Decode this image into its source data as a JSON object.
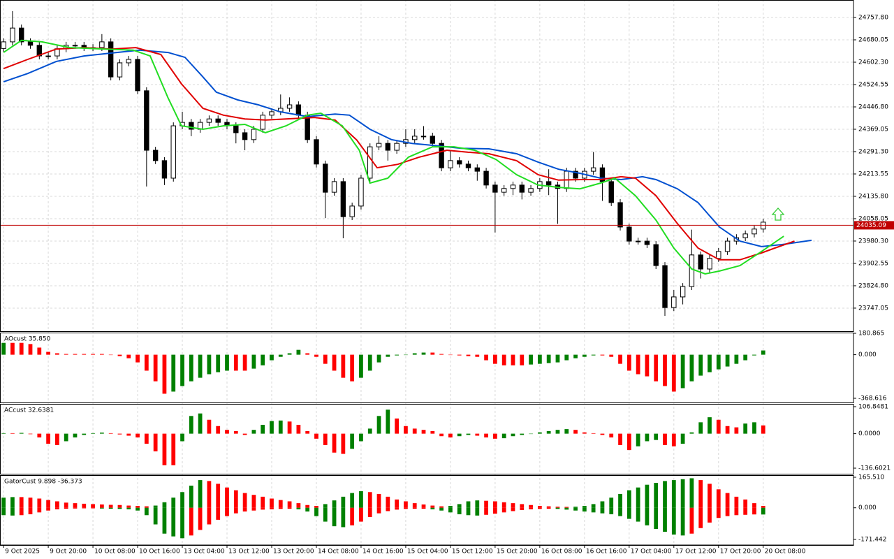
{
  "chart_data": [
    {
      "type": "candlestick",
      "categories": [
        "9 Oct 2025",
        null,
        null,
        null,
        null,
        "9 Oct 20:00",
        null,
        null,
        null,
        null,
        "10 Oct 08:00",
        null,
        null,
        null,
        null,
        "10 Oct 16:00",
        null,
        null,
        null,
        null,
        "13 Oct 04:00",
        null,
        null,
        null,
        null,
        "13 Oct 12:00",
        null,
        null,
        null,
        null,
        "13 Oct 20:00",
        null,
        null,
        null,
        null,
        "14 Oct 08:00",
        null,
        null,
        null,
        null,
        "14 Oct 16:00",
        null,
        null,
        null,
        null,
        "15 Oct 04:00",
        null,
        null,
        null,
        null,
        "15 Oct 12:00",
        null,
        null,
        null,
        null,
        "15 Oct 20:00",
        null,
        null,
        null,
        null,
        "16 Oct 08:00",
        null,
        null,
        null,
        null,
        "16 Oct 16:00",
        null,
        null,
        null,
        null,
        "17 Oct 04:00",
        null,
        null,
        null,
        null,
        "17 Oct 12:00",
        null,
        null,
        null,
        null,
        "17 Oct 20:00",
        null,
        null,
        null,
        null,
        "20 Oct 08:00"
      ],
      "open": [
        24650,
        24673,
        24721,
        24673,
        24661,
        24624,
        24624,
        24649,
        24661,
        24661,
        24653,
        24653,
        24673,
        24551,
        24600,
        24612,
        24503,
        24296,
        24260,
        24199,
        24381,
        24393,
        24369,
        24393,
        24405,
        24393,
        24381,
        24357,
        24333,
        24369,
        24418,
        24430,
        24442,
        24454,
        24418,
        24333,
        24248,
        24150,
        24187,
        24065,
        24102,
        24199,
        24308,
        24320,
        24296,
        24320,
        24333,
        24345,
        24345,
        24320,
        24235,
        24260,
        24248,
        24235,
        24223,
        24175,
        24150,
        24163,
        24175,
        24150,
        24163,
        24187,
        24175,
        24163,
        24223,
        24199,
        24223,
        24235,
        24187,
        24114,
        24029,
        23980,
        23980,
        23968,
        23895,
        23749,
        23786,
        23822,
        23932,
        23883,
        23920,
        23944,
        23980,
        23992,
        24005,
        24022
      ],
      "high": [
        24685,
        24780,
        24733,
        24685,
        24673,
        24636,
        24661,
        24673,
        24673,
        24673,
        24665,
        24700,
        24685,
        24612,
        24624,
        24624,
        24515,
        24308,
        24272,
        24393,
        24430,
        24405,
        24405,
        24417,
        24417,
        24405,
        24393,
        24369,
        24381,
        24430,
        24442,
        24490,
        24480,
        24466,
        24430,
        24345,
        24260,
        24199,
        24199,
        24114,
        24211,
        24320,
        24345,
        24332,
        24332,
        24369,
        24369,
        24380,
        24357,
        24332,
        24296,
        24272,
        24260,
        24247,
        24235,
        24187,
        24175,
        24187,
        24187,
        24175,
        24199,
        24230,
        24187,
        24235,
        24235,
        24235,
        24290,
        24247,
        24199,
        24126,
        24041,
        23992,
        23992,
        23980,
        23907,
        23810,
        23834,
        24020,
        23944,
        23932,
        23956,
        23992,
        24004,
        24017,
        24034,
        24058
      ],
      "low": [
        24638,
        24661,
        24661,
        24649,
        24612,
        24612,
        24612,
        24637,
        24649,
        24641,
        24641,
        24641,
        24539,
        24539,
        24588,
        24491,
        24170,
        24248,
        24175,
        24187,
        24369,
        24345,
        24357,
        24381,
        24381,
        24369,
        24320,
        24296,
        24321,
        24357,
        24406,
        24418,
        24430,
        24406,
        24321,
        24236,
        24060,
        24138,
        23990,
        24053,
        24090,
        24187,
        24296,
        24260,
        24284,
        24308,
        24321,
        24333,
        24308,
        24223,
        24223,
        24236,
        24223,
        24190,
        24163,
        24010,
        24138,
        24140,
        24125,
        24138,
        24151,
        24140,
        24040,
        24151,
        24187,
        24187,
        24211,
        24120,
        24102,
        24017,
        23968,
        23968,
        23956,
        23883,
        23720,
        23737,
        23760,
        23810,
        23850,
        23871,
        23908,
        23932,
        23968,
        23980,
        23993,
        24010
      ],
      "close": [
        24673,
        24721,
        24673,
        24661,
        24624,
        24624,
        24649,
        24661,
        24661,
        24653,
        24653,
        24673,
        24551,
        24600,
        24612,
        24503,
        24296,
        24260,
        24199,
        24381,
        24393,
        24369,
        24393,
        24405,
        24393,
        24381,
        24357,
        24333,
        24369,
        24418,
        24430,
        24442,
        24454,
        24418,
        24333,
        24248,
        24150,
        24187,
        24065,
        24102,
        24199,
        24308,
        24320,
        24296,
        24320,
        24333,
        24345,
        24345,
        24320,
        24235,
        24260,
        24248,
        24235,
        24223,
        24175,
        24150,
        24163,
        24175,
        24150,
        24163,
        24187,
        24175,
        24163,
        24223,
        24199,
        24223,
        24235,
        24187,
        24114,
        24029,
        23980,
        23980,
        23968,
        23895,
        23749,
        23786,
        23822,
        23932,
        23883,
        23920,
        23944,
        23980,
        23992,
        24005,
        24022,
        24046
      ],
      "up_color": "#ffffff",
      "down_color": "#000000",
      "outline_color": "#000000",
      "series": [
        {
          "color": "#0050d0",
          "x": [
            0,
            2.7,
            5.9,
            9.0,
            12.1,
            15.2,
            18.4,
            20.3,
            22.3,
            23.8,
            26.2,
            28.5,
            30.9,
            34.0,
            37.1,
            38.7,
            41.0,
            43.4,
            45.7,
            48.0,
            51.2,
            54.3,
            57.4,
            59.8,
            62.1,
            64.5,
            66.8,
            69.1,
            71.5,
            73.0,
            75.4,
            77.7,
            80.1,
            82.4,
            84.8,
            87.1,
            90.4
          ],
          "values": [
            24534,
            24563,
            24605,
            24624,
            24634,
            24644,
            24636,
            24619,
            24551,
            24498,
            24471,
            24454,
            24430,
            24413,
            24422,
            24418,
            24369,
            24333,
            24320,
            24313,
            24303,
            24301,
            24284,
            24255,
            24230,
            24216,
            24199,
            24194,
            24204,
            24194,
            24162,
            24114,
            24029,
            23980,
            23961,
            23968,
            23983
          ]
        },
        {
          "color": "#e00000",
          "x": [
            0,
            2.7,
            5.9,
            9.0,
            12.1,
            14.8,
            17.6,
            19.9,
            22.3,
            24.6,
            27.0,
            29.3,
            31.6,
            34.8,
            37.1,
            39.5,
            41.8,
            44.1,
            46.5,
            49.6,
            52.0,
            54.3,
            57.4,
            59.8,
            62.1,
            64.5,
            66.8,
            69.1,
            70.7,
            73.0,
            75.4,
            77.7,
            80.1,
            82.4,
            84.8,
            86.3,
            88.5
          ],
          "values": [
            24580,
            24612,
            24648,
            24653,
            24648,
            24653,
            24629,
            24527,
            24442,
            24418,
            24405,
            24401,
            24405,
            24410,
            24401,
            24332,
            24235,
            24247,
            24272,
            24296,
            24289,
            24284,
            24260,
            24211,
            24192,
            24194,
            24194,
            24204,
            24199,
            24138,
            24041,
            23956,
            23915,
            23915,
            23939,
            23956,
            23980
          ]
        },
        {
          "color": "#22dd22",
          "x": [
            0,
            2.0,
            4.3,
            7.4,
            11.3,
            14.5,
            16.4,
            18.4,
            19.9,
            22.3,
            24.6,
            27.0,
            29.3,
            31.6,
            34.0,
            35.5,
            37.9,
            39.8,
            41.0,
            43.0,
            45.3,
            48.0,
            50.4,
            52.7,
            55.1,
            57.4,
            59.8,
            62.1,
            64.5,
            66.8,
            68.4,
            70.7,
            73.0,
            75.0,
            77.0,
            78.5,
            80.1,
            82.4,
            84.8,
            87.3
          ],
          "values": [
            24636,
            24678,
            24673,
            24653,
            24648,
            24644,
            24624,
            24478,
            24381,
            24369,
            24381,
            24386,
            24357,
            24381,
            24418,
            24425,
            24381,
            24296,
            24182,
            24199,
            24272,
            24308,
            24308,
            24296,
            24264,
            24211,
            24175,
            24167,
            24162,
            24182,
            24199,
            24138,
            24053,
            23956,
            23883,
            23866,
            23876,
            23895,
            23944,
            23997
          ]
        }
      ],
      "current_price": 24035.09,
      "current_price_color": "#c00000",
      "xlim": [
        -0.4,
        95.1
      ],
      "ylim": [
        23671.6,
        24806.4
      ],
      "yticks": [
        {
          "value": 24757.8,
          "label": "24757.80"
        },
        24680.05,
        {
          "value": 24602.3,
          "label": "24602.30"
        },
        24524.55,
        {
          "value": 24446.8,
          "label": "24446.80"
        },
        24369.05,
        {
          "value": 24291.3,
          "label": "24291.30"
        },
        24213.55,
        {
          "value": 24135.8,
          "label": "24135.80"
        },
        24058.05,
        {
          "value": 23980.3,
          "label": "23980.30"
        },
        23902.55,
        {
          "value": 23824.8,
          "label": "23824.80"
        },
        23747.05
      ],
      "grid": true
    },
    {
      "type": "histogram",
      "title": "AOcust 35.850",
      "series": [
        {
          "values": [
            100,
            100,
            100,
            90,
            60,
            24,
            12,
            6,
            6,
            6,
            6,
            6,
            -2,
            -12,
            -30,
            -65,
            -135,
            -225,
            -330,
            -312,
            -265,
            -225,
            -195,
            -165,
            -148,
            -135,
            -135,
            -135,
            -118,
            -90,
            -47,
            -18,
            12,
            41,
            12,
            -18,
            -77,
            -135,
            -195,
            -225,
            -195,
            -135,
            -65,
            -18,
            -6,
            -2,
            12,
            18,
            18,
            6,
            -2,
            -6,
            -12,
            -18,
            -47,
            -77,
            -90,
            -90,
            -90,
            -83,
            -77,
            -71,
            -65,
            -47,
            -30,
            -18,
            -6,
            -6,
            -18,
            -77,
            -135,
            -165,
            -183,
            -225,
            -265,
            -312,
            -283,
            -225,
            -177,
            -148,
            -124,
            -100,
            -77,
            -47,
            -6,
            35.85
          ]
        }
      ],
      "up_color": "#008000",
      "down_color": "#ff0000",
      "ylim": [
        -368.616,
        180.865
      ],
      "yticks": [
        180.865,
        {
          "value": 0,
          "label": "0.000"
        },
        -368.616
      ]
    },
    {
      "type": "histogram",
      "title": "ACcust 32.6381",
      "series": [
        {
          "values": [
            2,
            2,
            3,
            -2,
            -15,
            -40,
            -45,
            -30,
            -15,
            -5,
            2,
            4,
            2,
            -3,
            -8,
            -15,
            -40,
            -70,
            -125,
            -125,
            -30,
            70,
            80,
            55,
            30,
            15,
            10,
            -5,
            15,
            35,
            50,
            52,
            48,
            35,
            10,
            -20,
            -45,
            -75,
            -80,
            -60,
            -30,
            20,
            70,
            95,
            60,
            30,
            20,
            15,
            10,
            -10,
            -15,
            -10,
            -5,
            -8,
            -15,
            -20,
            -18,
            -10,
            -5,
            0,
            5,
            10,
            15,
            18,
            15,
            5,
            2,
            -5,
            -15,
            -45,
            -65,
            -50,
            -30,
            -25,
            -45,
            -50,
            -40,
            5,
            45,
            65,
            55,
            30,
            25,
            40,
            45,
            32.6381
          ]
        }
      ],
      "up_color": "#008000",
      "down_color": "#ff0000",
      "ylim": [
        -136.6021,
        106.8481
      ],
      "yticks": [
        106.8481,
        {
          "value": 0,
          "label": "0.0000"
        },
        -136.6021
      ]
    },
    {
      "type": "gator",
      "title": "GatorCust 9.898 -36.373",
      "series": [
        {
          "values": [
            55,
            58,
            58,
            55,
            50,
            42,
            35,
            28,
            25,
            22,
            20,
            18,
            16,
            15,
            12,
            10,
            8,
            12,
            30,
            55,
            85,
            120,
            150,
            145,
            130,
            110,
            95,
            80,
            70,
            60,
            50,
            42,
            35,
            25,
            15,
            10,
            20,
            40,
            60,
            80,
            90,
            85,
            75,
            60,
            45,
            35,
            25,
            18,
            12,
            8,
            10,
            20,
            35,
            40,
            38,
            35,
            30,
            25,
            20,
            15,
            10,
            8,
            6,
            5,
            6,
            10,
            20,
            35,
            55,
            75,
            95,
            110,
            125,
            135,
            145,
            150,
            155,
            160,
            150,
            130,
            100,
            80,
            60,
            45,
            25,
            9.898
          ]
        },
        {
          "values": [
            -40,
            -42,
            -40,
            -35,
            -25,
            -15,
            -8,
            -5,
            -4,
            -3,
            -3,
            -4,
            -5,
            -6,
            -8,
            -15,
            -40,
            -90,
            -140,
            -155,
            -165,
            -150,
            -120,
            -90,
            -65,
            -45,
            -30,
            -20,
            -15,
            -10,
            -8,
            -6,
            -5,
            -8,
            -20,
            -45,
            -75,
            -100,
            -105,
            -95,
            -75,
            -50,
            -30,
            -18,
            -10,
            -6,
            -5,
            -5,
            -8,
            -15,
            -25,
            -35,
            -40,
            -42,
            -38,
            -32,
            -25,
            -18,
            -12,
            -8,
            -6,
            -5,
            -6,
            -10,
            -15,
            -20,
            -25,
            -30,
            -35,
            -45,
            -60,
            -75,
            -95,
            -115,
            -130,
            -145,
            -150,
            -140,
            -110,
            -80,
            -55,
            -45,
            -40,
            -38,
            -36,
            -36.373
          ]
        }
      ],
      "up_color": "#008000",
      "down_color": "#ff0000",
      "ylim": [
        -171.442,
        165.51
      ],
      "yticks": [
        {
          "value": 165.51,
          "label": "165.510"
        },
        {
          "value": 0,
          "label": "0.000"
        },
        -171.442
      ]
    }
  ]
}
